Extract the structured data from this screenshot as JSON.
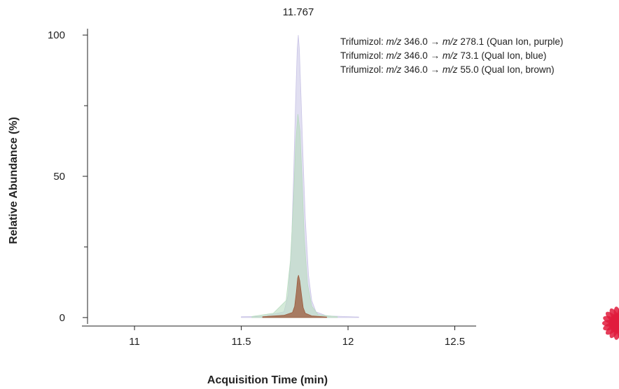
{
  "chart_data": {
    "type": "area",
    "title": "",
    "xlabel": "Acquisition Time (min)",
    "ylabel": "Relative Abundance (%)",
    "xlim": [
      10.78,
      12.6
    ],
    "ylim": [
      -3,
      103
    ],
    "xticks": [
      11,
      11.5,
      12,
      12.5
    ],
    "xtick_labels": [
      "11",
      "11.5",
      "12",
      "12.5"
    ],
    "yticks": [
      0,
      50,
      100
    ],
    "ytick_labels": [
      "0",
      "50",
      "100"
    ],
    "y_minor_ticks": [
      25,
      75
    ],
    "legend_position": "top-right",
    "annotations": [
      {
        "text": "11.767",
        "x": 11.767,
        "y": 100
      }
    ],
    "series": [
      {
        "color": "#c9c4e6",
        "fill_opacity": 0.55,
        "x": [
          11.5,
          11.6,
          11.7,
          11.72,
          11.735,
          11.745,
          11.755,
          11.762,
          11.767,
          11.772,
          11.78,
          11.79,
          11.8,
          11.815,
          11.83,
          11.85,
          11.9,
          12.05
        ],
        "y": [
          0.3,
          0.4,
          2,
          8,
          25,
          50,
          78,
          95,
          100,
          95,
          78,
          55,
          35,
          15,
          6,
          2,
          0.6,
          0.2
        ]
      },
      {
        "color": "#b9dcc0",
        "fill_opacity": 0.6,
        "x": [
          11.55,
          11.65,
          11.71,
          11.73,
          11.745,
          11.755,
          11.765,
          11.775,
          11.785,
          11.795,
          11.81,
          11.83,
          11.86,
          11.95
        ],
        "y": [
          0.4,
          1.5,
          6,
          20,
          42,
          62,
          72,
          66,
          48,
          28,
          12,
          4,
          1,
          0.3
        ]
      },
      {
        "color": "#9b5a3c",
        "fill_opacity": 0.75,
        "x": [
          11.6,
          11.7,
          11.74,
          11.75,
          11.758,
          11.764,
          11.768,
          11.774,
          11.782,
          11.79,
          11.8,
          11.83,
          11.9
        ],
        "y": [
          0.3,
          0.8,
          1.8,
          4,
          9,
          14,
          15,
          13,
          8,
          3.5,
          1.5,
          0.6,
          0.2
        ]
      }
    ]
  },
  "legend": [
    {
      "name": "Trifumizol:",
      "mz1": "m/z",
      "v1": "346.0 →",
      "mz2": "m/z",
      "v2": "278.1 (Quan Ion, purple)"
    },
    {
      "name": "Trifumizol:",
      "mz1": "m/z",
      "v1": "346.0 →",
      "mz2": "m/z",
      "v2": "73.1 (Qual Ion, blue)"
    },
    {
      "name": "Trifumizol:",
      "mz1": "m/z",
      "v1": "346.0 →",
      "mz2": "m/z",
      "v2": "55.0 (Qual Ion, brown)"
    }
  ],
  "decoration": {
    "color": "#e11b3c",
    "icon": "red-flower-logo-icon"
  }
}
